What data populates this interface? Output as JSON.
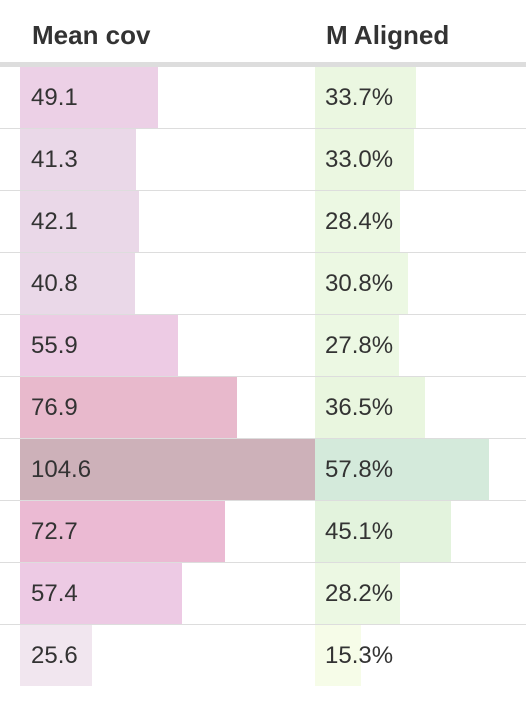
{
  "table": {
    "columns": {
      "mean_cov": "Mean cov",
      "m_aligned": "M Aligned"
    },
    "scale": {
      "mean_cov_max": 104.6,
      "m_aligned_max": 57.8
    },
    "rows": [
      {
        "mean_cov": "49.1",
        "mean_cov_value": 49.1,
        "mean_cov_color": "#ecd0e6",
        "m_aligned": "33.7%",
        "m_aligned_value": 33.7,
        "m_aligned_color": "#ebf7e1"
      },
      {
        "mean_cov": "41.3",
        "mean_cov_value": 41.3,
        "mean_cov_color": "#ead8e8",
        "m_aligned": "33.0%",
        "m_aligned_value": 33.0,
        "m_aligned_color": "#ebf7e1"
      },
      {
        "mean_cov": "42.1",
        "mean_cov_value": 42.1,
        "mean_cov_color": "#ead8e8",
        "m_aligned": "28.4%",
        "m_aligned_value": 28.4,
        "m_aligned_color": "#ecf8e3"
      },
      {
        "mean_cov": "40.8",
        "mean_cov_value": 40.8,
        "mean_cov_color": "#ead8e8",
        "m_aligned": "30.8%",
        "m_aligned_value": 30.8,
        "m_aligned_color": "#ecf8e3"
      },
      {
        "mean_cov": "55.9",
        "mean_cov_value": 55.9,
        "mean_cov_color": "#edcbe4",
        "m_aligned": "27.8%",
        "m_aligned_value": 27.8,
        "m_aligned_color": "#ecf8e3"
      },
      {
        "mean_cov": "76.9",
        "mean_cov_value": 76.9,
        "mean_cov_color": "#e8b9cc",
        "m_aligned": "36.5%",
        "m_aligned_value": 36.5,
        "m_aligned_color": "#e9f6df"
      },
      {
        "mean_cov": "104.6",
        "mean_cov_value": 104.6,
        "mean_cov_color": "#cdb1b9",
        "m_aligned": "57.8%",
        "m_aligned_value": 57.8,
        "m_aligned_color": "#d4eadb"
      },
      {
        "mean_cov": "72.7",
        "mean_cov_value": 72.7,
        "mean_cov_color": "#ebbad3",
        "m_aligned": "45.1%",
        "m_aligned_value": 45.1,
        "m_aligned_color": "#e3f3dd"
      },
      {
        "mean_cov": "57.4",
        "mean_cov_value": 57.4,
        "mean_cov_color": "#edcae4",
        "m_aligned": "28.2%",
        "m_aligned_value": 28.2,
        "m_aligned_color": "#ecf8e3"
      },
      {
        "mean_cov": "25.6",
        "mean_cov_value": 25.6,
        "mean_cov_color": "#f1e6ef",
        "m_aligned": "15.3%",
        "m_aligned_value": 15.3,
        "m_aligned_color": "#f6fce8"
      }
    ]
  }
}
